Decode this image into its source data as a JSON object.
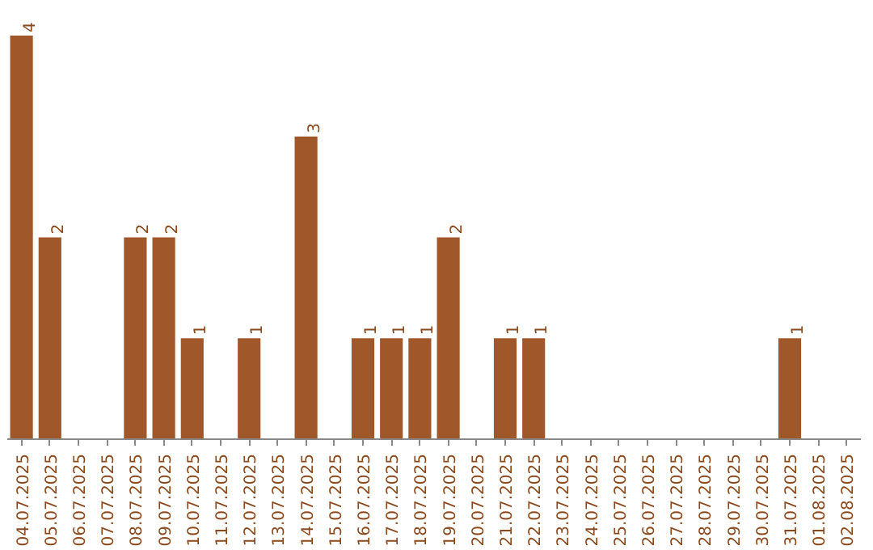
{
  "chart_data": {
    "type": "bar",
    "categories": [
      "04.07.2025",
      "05.07.2025",
      "06.07.2025",
      "07.07.2025",
      "08.07.2025",
      "09.07.2025",
      "10.07.2025",
      "11.07.2025",
      "12.07.2025",
      "13.07.2025",
      "14.07.2025",
      "15.07.2025",
      "16.07.2025",
      "17.07.2025",
      "18.07.2025",
      "19.07.2025",
      "20.07.2025",
      "21.07.2025",
      "22.07.2025",
      "23.07.2025",
      "24.07.2025",
      "25.07.2025",
      "26.07.2025",
      "27.07.2025",
      "28.07.2025",
      "29.07.2025",
      "30.07.2025",
      "31.07.2025",
      "01.08.2025",
      "02.08.2025"
    ],
    "values": [
      4,
      2,
      0,
      0,
      2,
      2,
      1,
      0,
      1,
      0,
      3,
      0,
      1,
      1,
      1,
      2,
      0,
      1,
      1,
      0,
      0,
      0,
      0,
      0,
      0,
      0,
      0,
      1,
      0,
      0
    ],
    "value_labels": [
      "4",
      "2",
      null,
      null,
      "2",
      "2",
      "1",
      null,
      "1",
      null,
      "3",
      null,
      "1",
      "1",
      "1",
      "2",
      null,
      "1",
      "1",
      null,
      null,
      null,
      null,
      null,
      null,
      null,
      null,
      "1",
      null,
      null
    ],
    "color": "#a0572a",
    "grid": false
  }
}
